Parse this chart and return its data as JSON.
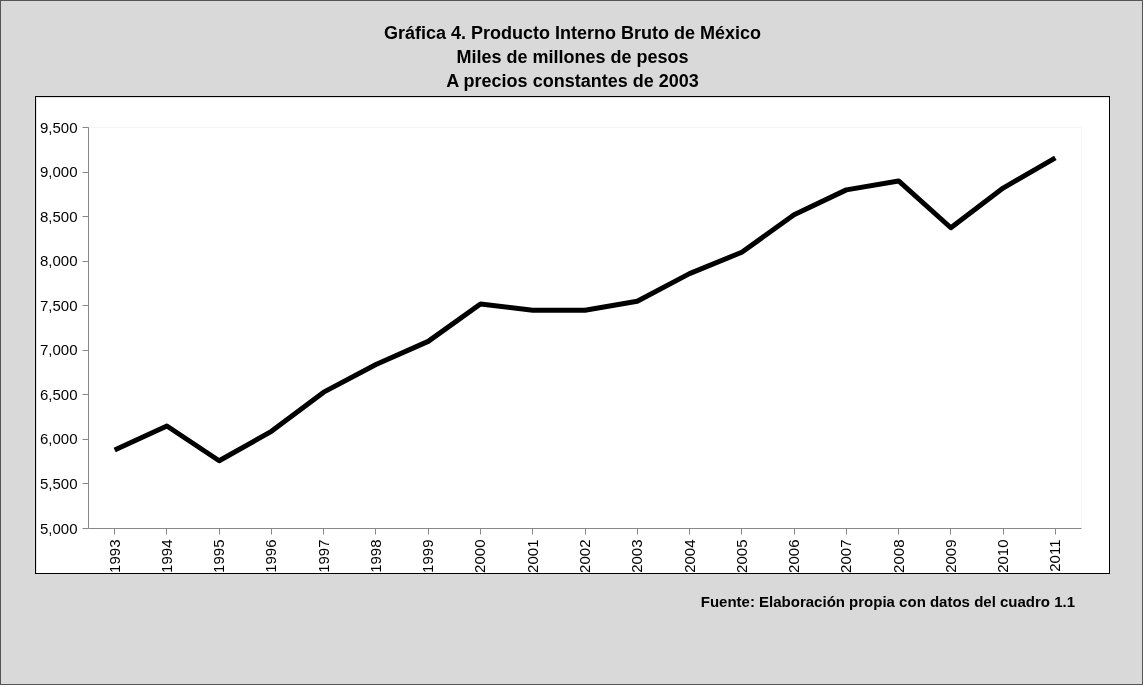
{
  "chart_data": {
    "type": "line",
    "title": "Gráfica 4. Producto Interno Bruto de México",
    "subtitle": "Miles de millones de pesos\nA precios constantes de 2003",
    "categories": [
      "1993",
      "1994",
      "1995",
      "1996",
      "1997",
      "1998",
      "1999",
      "2000",
      "2001",
      "2002",
      "2003",
      "2004",
      "2005",
      "2006",
      "2007",
      "2008",
      "2009",
      "2010",
      "2011"
    ],
    "series": [
      {
        "color": "#000000",
        "values": [
          5880,
          6150,
          5760,
          6090,
          6530,
          6840,
          7100,
          7520,
          7450,
          7450,
          7550,
          7860,
          8100,
          8520,
          8800,
          8900,
          8375,
          8820,
          9160
        ]
      }
    ],
    "ylim": [
      5000,
      9500
    ],
    "yticks": [
      {
        "value": 5000,
        "label": "5,000"
      },
      {
        "value": 5500,
        "label": "5,500"
      },
      {
        "value": 6000,
        "label": "6,000"
      },
      {
        "value": 6500,
        "label": "6,500"
      },
      {
        "value": 7000,
        "label": "7,000"
      },
      {
        "value": 7500,
        "label": "7,500"
      },
      {
        "value": 8000,
        "label": "8,000"
      },
      {
        "value": 8500,
        "label": "8,500"
      },
      {
        "value": 9000,
        "label": "9,000"
      },
      {
        "value": 9500,
        "label": "9,500"
      }
    ],
    "grid": false,
    "marker": "none",
    "line_style": "solid",
    "annotations": [
      "Fuente: Elaboración propia con datos del cuadro 1.1"
    ]
  }
}
